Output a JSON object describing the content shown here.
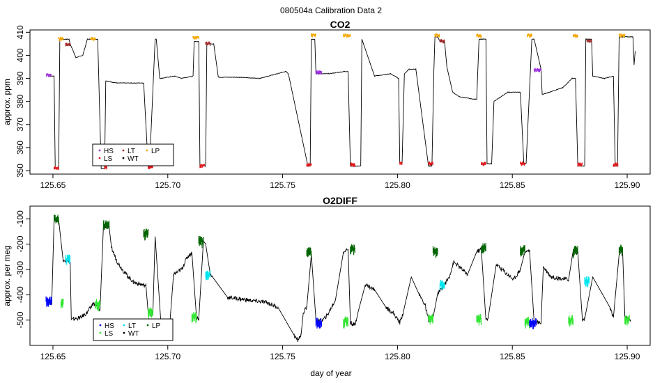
{
  "page_title": "080504a   Calibration Data 2",
  "x_axis_label": "day of year",
  "colors": {
    "HS": "#9b30d9",
    "LS": "#e31a1c",
    "LT": "#a52a2a",
    "WT": "#000000",
    "LP": "#f5a700",
    "O2_HS": "#0000ff",
    "O2_LS": "#32e632",
    "O2_LT": "#00e5ee",
    "O2_LP": "#006400",
    "trace": "#000000"
  },
  "chart_data": [
    {
      "type": "line",
      "title": "CO2",
      "xlabel": "",
      "ylabel": "approx. ppm",
      "xlim": [
        125.64,
        125.91
      ],
      "ylim": [
        348.5,
        411
      ],
      "xticks": [
        125.65,
        125.7,
        125.75,
        125.8,
        125.85,
        125.9
      ],
      "xtick_labels": [
        "125.65",
        "125.70",
        "125.75",
        "125.80",
        "125.85",
        "125.90"
      ],
      "yticks": [
        350,
        360,
        370,
        380,
        390,
        400,
        410
      ],
      "ytick_labels": [
        "350",
        "360",
        "370",
        "380",
        "390",
        "400",
        "410"
      ],
      "grid": false,
      "legend": {
        "placement": "bottom-left",
        "entries": [
          "HS",
          "LS",
          "LT",
          "WT",
          "LP"
        ]
      },
      "series": [
        {
          "x": [
            125.648,
            125.649,
            125.6505,
            125.651,
            125.651,
            125.6525,
            125.653,
            125.657,
            125.6575,
            125.66,
            125.663,
            125.665,
            125.666,
            125.6685,
            125.6695,
            125.671,
            125.6725,
            125.673,
            125.675,
            125.678,
            125.684,
            125.689,
            125.6895,
            125.6915,
            125.692,
            125.6945,
            125.695,
            125.6965,
            125.697,
            125.703,
            125.706,
            125.711,
            125.7115,
            125.7135,
            125.714,
            125.7165,
            125.717,
            125.72,
            125.722,
            125.73,
            125.74,
            125.7515,
            125.7525,
            125.761,
            125.762,
            125.7625,
            125.764,
            125.7645,
            125.77,
            125.777,
            125.7785,
            125.7795,
            125.784,
            125.7845,
            125.79,
            125.797,
            125.8005,
            125.801,
            125.802,
            125.803,
            125.805,
            125.808,
            125.8135,
            125.815,
            125.8158,
            125.8163,
            125.8175,
            125.8185,
            125.8205,
            125.8215,
            125.824,
            125.827,
            125.833,
            125.8345,
            125.8355,
            125.8385,
            125.839,
            125.841,
            125.842,
            125.848,
            125.853,
            125.8535,
            125.855,
            125.856,
            125.8585,
            125.8595,
            125.8625,
            125.863,
            125.866,
            125.872,
            125.876,
            125.8775,
            125.8785,
            125.8815,
            125.882,
            125.8845,
            125.885,
            125.89,
            125.894,
            125.8948,
            125.8958,
            125.8965,
            125.898,
            125.899,
            125.9025,
            125.903,
            125.9035
          ],
          "y": [
            391,
            391,
            391,
            351,
            351,
            351,
            407,
            407,
            405,
            399,
            400,
            407,
            407,
            407,
            407,
            351,
            351,
            389,
            388.5,
            388,
            388,
            388,
            388,
            351,
            351,
            407,
            407,
            390,
            390,
            391,
            390,
            391,
            406,
            406,
            352,
            352,
            405,
            405,
            390.5,
            390.5,
            390,
            393,
            392,
            352,
            352,
            407,
            407,
            392,
            392,
            393,
            393,
            352,
            352,
            407,
            391,
            392,
            390,
            353,
            353,
            392,
            394,
            394,
            352,
            352,
            392,
            408,
            408,
            406,
            406,
            395,
            384,
            382,
            381,
            381,
            407,
            407,
            353,
            353,
            380,
            384,
            384,
            384,
            353,
            353,
            407,
            407,
            394,
            383,
            384,
            386,
            390,
            390,
            352,
            352,
            407,
            407,
            391,
            390,
            391,
            352,
            352,
            408,
            408,
            408,
            408,
            396,
            402
          ]
        }
      ],
      "markers": [
        {
          "label": "HS",
          "x": [
            125.6472,
            125.6493
          ],
          "y": 391.2
        },
        {
          "label": "LS",
          "x": [
            125.6505,
            125.6525
          ],
          "y": 351
        },
        {
          "label": "LP",
          "x": [
            125.6525,
            125.6545
          ],
          "y": 407
        },
        {
          "label": "LT",
          "x": [
            125.6555,
            125.6575
          ],
          "y": 404.5
        },
        {
          "label": "LP",
          "x": [
            125.6665,
            125.6685
          ],
          "y": 407
        },
        {
          "label": "LS",
          "x": [
            125.6725,
            125.6735
          ],
          "y": 351.3
        },
        {
          "label": "LS",
          "x": [
            125.6915,
            125.6935
          ],
          "y": 351.3
        },
        {
          "label": "LP",
          "x": [
            125.711,
            125.7135
          ],
          "y": 407.5
        },
        {
          "label": "LS",
          "x": [
            125.714,
            125.716
          ],
          "y": 352
        },
        {
          "label": "LT",
          "x": [
            125.7165,
            125.7185
          ],
          "y": 405
        },
        {
          "label": "LS",
          "x": [
            125.7605,
            125.7625
          ],
          "y": 352.5
        },
        {
          "label": "LP",
          "x": [
            125.7625,
            125.7645
          ],
          "y": 408.5
        },
        {
          "label": "HS",
          "x": [
            125.7645,
            125.767
          ],
          "y": 392.5
        },
        {
          "label": "LP",
          "x": [
            125.7765,
            125.7795
          ],
          "y": 408.5
        },
        {
          "label": "LS",
          "x": [
            125.7795,
            125.7815
          ],
          "y": 352.5
        },
        {
          "label": "LS",
          "x": [
            125.801,
            125.802
          ],
          "y": 353
        },
        {
          "label": "LS",
          "x": [
            125.8135,
            125.8155
          ],
          "y": 353
        },
        {
          "label": "LP",
          "x": [
            125.8163,
            125.8183
          ],
          "y": 408.5
        },
        {
          "label": "LT",
          "x": [
            125.8185,
            125.8205
          ],
          "y": 406
        },
        {
          "label": "LP",
          "x": [
            125.8345,
            125.8365
          ],
          "y": 408.5
        },
        {
          "label": "LS",
          "x": [
            125.8365,
            125.8385
          ],
          "y": 353
        },
        {
          "label": "LS",
          "x": [
            125.8535,
            125.8555
          ],
          "y": 353
        },
        {
          "label": "LP",
          "x": [
            125.8565,
            125.8585
          ],
          "y": 408.5
        },
        {
          "label": "HS",
          "x": [
            125.8595,
            125.8625
          ],
          "y": 393.5
        },
        {
          "label": "LP",
          "x": [
            125.8765,
            125.8785
          ],
          "y": 408.5
        },
        {
          "label": "LS",
          "x": [
            125.8785,
            125.8805
          ],
          "y": 352.5
        },
        {
          "label": "LT",
          "x": [
            125.8825,
            125.8845
          ],
          "y": 406
        },
        {
          "label": "LS",
          "x": [
            125.894,
            125.896
          ],
          "y": 352.5
        },
        {
          "label": "LP",
          "x": [
            125.8965,
            125.899
          ],
          "y": 408.5
        }
      ],
      "annotations": []
    },
    {
      "type": "line",
      "title": "O2DIFF",
      "xlabel": "day of year",
      "ylabel": "approx. per meg",
      "xlim": [
        125.64,
        125.91
      ],
      "ylim": [
        -600,
        -50
      ],
      "xticks": [
        125.65,
        125.7,
        125.75,
        125.8,
        125.85,
        125.9
      ],
      "xtick_labels": [
        "125.65",
        "125.70",
        "125.75",
        "125.80",
        "125.85",
        "125.90"
      ],
      "yticks": [
        -500,
        -400,
        -300,
        -200,
        -100
      ],
      "ytick_labels": [
        "-500",
        "-400",
        "-300",
        "-200",
        "-100"
      ],
      "grid": false,
      "legend": {
        "placement": "bottom-left",
        "entries": [
          "HS",
          "LS",
          "LT",
          "WT",
          "LP"
        ]
      },
      "series": [
        {
          "x": [
            125.648,
            125.6495,
            125.6505,
            125.6525,
            125.6545,
            125.6555,
            125.6575,
            125.658,
            125.6595,
            125.662,
            125.665,
            125.6675,
            125.6685,
            125.6705,
            125.672,
            125.6745,
            125.6755,
            125.678,
            125.681,
            125.685,
            125.6905,
            125.6915,
            125.6935,
            125.6945,
            125.697,
            125.6995,
            125.701,
            125.7025,
            125.706,
            125.7085,
            125.7105,
            125.7125,
            125.7135,
            125.7155,
            125.7165,
            125.7185,
            125.7195,
            125.726,
            125.734,
            125.743,
            125.748,
            125.755,
            125.7565,
            125.758,
            125.759,
            125.7605,
            125.7625,
            125.7645,
            125.767,
            125.7695,
            125.773,
            125.7765,
            125.7785,
            125.7795,
            125.7815,
            125.7825,
            125.786,
            125.79,
            125.795,
            125.798,
            125.801,
            125.8025,
            125.806,
            125.8095,
            125.812,
            125.8135,
            125.8155,
            125.8175,
            125.8185,
            125.8205,
            125.8225,
            125.8245,
            125.8305,
            125.8345,
            125.8365,
            125.8385,
            125.8395,
            125.843,
            125.8505,
            125.8535,
            125.8555,
            125.8575,
            125.8595,
            125.8625,
            125.8635,
            125.867,
            125.8745,
            125.8765,
            125.8785,
            125.8805,
            125.8815,
            125.885,
            125.8925,
            125.894,
            125.8965,
            125.898,
            125.899,
            125.9015
          ],
          "y": [
            -425,
            -430,
            -100,
            -105,
            -270,
            -260,
            -270,
            -500,
            -495,
            -490,
            -470,
            -435,
            -440,
            -460,
            -125,
            -135,
            -215,
            -270,
            -310,
            -350,
            -365,
            -475,
            -480,
            -170,
            -510,
            -520,
            -500,
            -320,
            -300,
            -250,
            -235,
            -490,
            -495,
            -190,
            -200,
            -320,
            -330,
            -410,
            -420,
            -430,
            -450,
            -560,
            -580,
            -560,
            -470,
            -450,
            -240,
            -500,
            -505,
            -480,
            -420,
            -230,
            -220,
            -510,
            -520,
            -480,
            -360,
            -380,
            -450,
            -470,
            -510,
            -470,
            -330,
            -400,
            -440,
            -500,
            -490,
            -395,
            -385,
            -360,
            -330,
            -270,
            -320,
            -230,
            -220,
            -500,
            -490,
            -280,
            -340,
            -300,
            -230,
            -225,
            -510,
            -510,
            -290,
            -330,
            -340,
            -225,
            -230,
            -500,
            -495,
            -330,
            -450,
            -490,
            -240,
            -225,
            -490,
            -500
          ]
        }
      ],
      "markers": [
        {
          "label": "HS",
          "x": [
            125.647,
            125.6495
          ],
          "y": -430
        },
        {
          "label": "LP",
          "x": [
            125.6505,
            125.6525
          ],
          "y": -105
        },
        {
          "label": "LT",
          "x": [
            125.6555,
            125.6575
          ],
          "y": -265
        },
        {
          "label": "LS",
          "x": [
            125.6535,
            125.6545
          ],
          "y": -435
        },
        {
          "label": "LS",
          "x": [
            125.6685,
            125.6705
          ],
          "y": -440
        },
        {
          "label": "LP",
          "x": [
            125.672,
            125.6745
          ],
          "y": -130
        },
        {
          "label": "LP",
          "x": [
            125.6895,
            125.6915
          ],
          "y": -160
        },
        {
          "label": "LS",
          "x": [
            125.6915,
            125.6935
          ],
          "y": -475
        },
        {
          "label": "LS",
          "x": [
            125.7105,
            125.7125
          ],
          "y": -490
        },
        {
          "label": "LP",
          "x": [
            125.7135,
            125.7155
          ],
          "y": -190
        },
        {
          "label": "LT",
          "x": [
            125.7165,
            125.7185
          ],
          "y": -325
        },
        {
          "label": "LP",
          "x": [
            125.7605,
            125.7625
          ],
          "y": -235
        },
        {
          "label": "HS",
          "x": [
            125.7645,
            125.767
          ],
          "y": -515
        },
        {
          "label": "LS",
          "x": [
            125.7765,
            125.7785
          ],
          "y": -510
        },
        {
          "label": "LP",
          "x": [
            125.7795,
            125.7815
          ],
          "y": -225
        },
        {
          "label": "LS",
          "x": [
            125.8135,
            125.8155
          ],
          "y": -500
        },
        {
          "label": "LP",
          "x": [
            125.8155,
            125.8175
          ],
          "y": -230
        },
        {
          "label": "LT",
          "x": [
            125.8185,
            125.8205
          ],
          "y": -365
        },
        {
          "label": "LS",
          "x": [
            125.8345,
            125.8365
          ],
          "y": -500
        },
        {
          "label": "LP",
          "x": [
            125.8365,
            125.8385
          ],
          "y": -220
        },
        {
          "label": "LP",
          "x": [
            125.8535,
            125.8555
          ],
          "y": -228
        },
        {
          "label": "LS",
          "x": [
            125.8555,
            125.8575
          ],
          "y": -510
        },
        {
          "label": "HS",
          "x": [
            125.8575,
            125.8605
          ],
          "y": -512
        },
        {
          "label": "LS",
          "x": [
            125.8745,
            125.8765
          ],
          "y": -505
        },
        {
          "label": "LP",
          "x": [
            125.8765,
            125.8785
          ],
          "y": -230
        },
        {
          "label": "LT",
          "x": [
            125.8815,
            125.8835
          ],
          "y": -350
        },
        {
          "label": "LP",
          "x": [
            125.8965,
            125.898
          ],
          "y": -225
        },
        {
          "label": "LS",
          "x": [
            125.899,
            125.901
          ],
          "y": -500
        }
      ],
      "annotations": []
    }
  ]
}
